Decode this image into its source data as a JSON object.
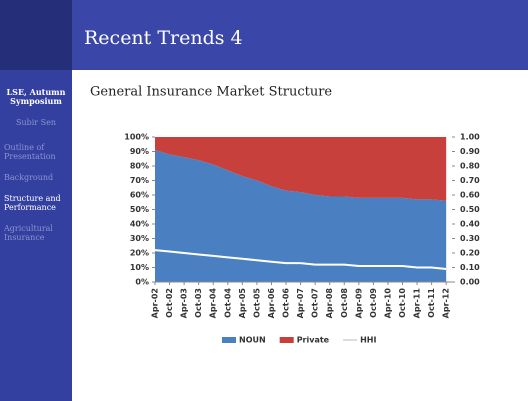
{
  "header": {
    "title": "Recent Trends 4"
  },
  "sidebar": {
    "items": [
      "LSE, Autumn Symposium",
      "Subir Sen",
      "Outline of Presentation",
      "Background",
      "Structure and Performance",
      "Agricultural Insurance"
    ]
  },
  "chart_data": {
    "type": "stacked_area",
    "title": "General Insurance Market Structure",
    "categories": [
      "Apr-02",
      "Oct-02",
      "Apr-03",
      "Oct-03",
      "Apr-04",
      "Oct-04",
      "Apr-05",
      "Oct-05",
      "Apr-06",
      "Oct-06",
      "Apr-07",
      "Oct-07",
      "Apr-08",
      "Oct-08",
      "Apr-09",
      "Oct-09",
      "Apr-10",
      "Oct-10",
      "Apr-11",
      "Oct-11",
      "Apr-12"
    ],
    "series": [
      {
        "name": "NOUN",
        "color": "#4a7fc1",
        "values": [
          91,
          88,
          86,
          84,
          81,
          77,
          73,
          70,
          66,
          63,
          62,
          60,
          59,
          59,
          58,
          58,
          58,
          58,
          57,
          57,
          56
        ]
      },
      {
        "name": "Private",
        "color": "#c8403c",
        "values": [
          9,
          12,
          14,
          16,
          19,
          23,
          27,
          30,
          34,
          37,
          38,
          40,
          41,
          41,
          42,
          42,
          42,
          42,
          43,
          43,
          44
        ]
      },
      {
        "name": "HHI",
        "color": "#ffffff",
        "axis": "y2",
        "values": [
          0.22,
          0.21,
          0.2,
          0.19,
          0.18,
          0.17,
          0.16,
          0.15,
          0.14,
          0.13,
          0.13,
          0.12,
          0.12,
          0.12,
          0.11,
          0.11,
          0.11,
          0.11,
          0.1,
          0.1,
          0.09
        ]
      }
    ],
    "ylim": [
      0,
      100
    ],
    "yticks": [
      {
        "value": 0,
        "label": "0%"
      },
      {
        "value": 10,
        "label": "10%"
      },
      {
        "value": 20,
        "label": "20%"
      },
      {
        "value": 30,
        "label": "30%"
      },
      {
        "value": 40,
        "label": "40%"
      },
      {
        "value": 50,
        "label": "50%"
      },
      {
        "value": 60,
        "label": "60%"
      },
      {
        "value": 70,
        "label": "70%"
      },
      {
        "value": 80,
        "label": "80%"
      },
      {
        "value": 90,
        "label": "90%"
      },
      {
        "value": 100,
        "label": "100%"
      }
    ],
    "y2lim": [
      0,
      1
    ],
    "y2ticks": [
      {
        "value": 0,
        "label": "0.00"
      },
      {
        "value": 0.1,
        "label": "0.10"
      },
      {
        "value": 0.2,
        "label": "0.20"
      },
      {
        "value": 0.3,
        "label": "0.30"
      },
      {
        "value": 0.4,
        "label": "0.40"
      },
      {
        "value": 0.5,
        "label": "0.50"
      },
      {
        "value": 0.6,
        "label": "0.60"
      },
      {
        "value": 0.7,
        "label": "0.70"
      },
      {
        "value": 0.8,
        "label": "0.80"
      },
      {
        "value": 0.9,
        "label": "0.90"
      },
      {
        "value": 1,
        "label": "1.00"
      }
    ],
    "legend": "bottom"
  }
}
